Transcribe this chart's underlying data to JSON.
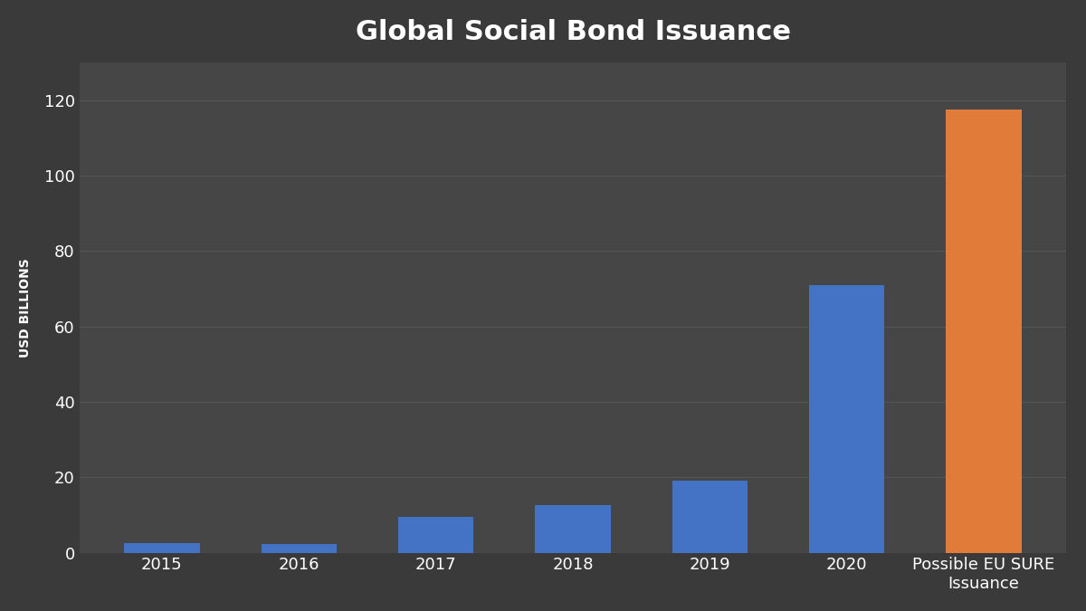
{
  "title": "Global Social Bond Issuance",
  "categories": [
    "2015",
    "2016",
    "2017",
    "2018",
    "2019",
    "2020",
    "Possible EU SURE\nIssuance"
  ],
  "values": [
    2.5,
    2.2,
    9.5,
    12.5,
    19.0,
    71.0,
    117.5
  ],
  "bar_colors": [
    "#4472C4",
    "#4472C4",
    "#4472C4",
    "#4472C4",
    "#4472C4",
    "#4472C4",
    "#E07B39"
  ],
  "ylabel": "USD BILLIONS",
  "ylim": [
    0,
    130
  ],
  "yticks": [
    0,
    20,
    40,
    60,
    80,
    100,
    120
  ],
  "background_color": "#3A3A3A",
  "plot_bg_color": "#464646",
  "text_color": "#FFFFFF",
  "grid_color": "#555555",
  "title_fontsize": 22,
  "ylabel_fontsize": 10,
  "tick_fontsize": 13
}
